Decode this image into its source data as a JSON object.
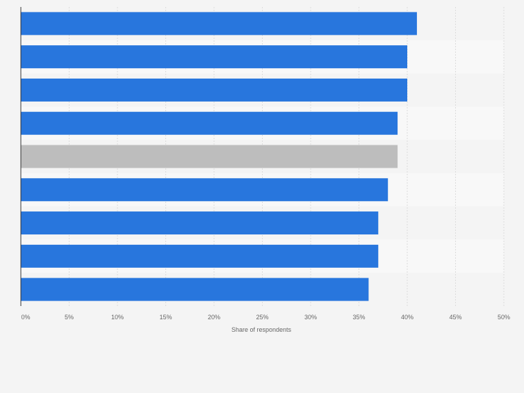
{
  "chart_data": {
    "type": "bar",
    "orientation": "horizontal",
    "categories": [
      "",
      "",
      "",
      "",
      "",
      "",
      "",
      "",
      ""
    ],
    "values": [
      41,
      40,
      40,
      39,
      39,
      38,
      37,
      37,
      36
    ],
    "highlight_index": 4,
    "xlabel": "Share of respondents",
    "ylabel": "",
    "xlim": [
      0,
      50
    ],
    "ticks": [
      0,
      5,
      10,
      15,
      20,
      25,
      30,
      35,
      40,
      45,
      50
    ],
    "tick_labels": [
      "0%",
      "5%",
      "10%",
      "15%",
      "20%",
      "25%",
      "30%",
      "35%",
      "40%",
      "45%",
      "50%"
    ],
    "grid": true,
    "legend": "none",
    "colors": {
      "bar": "#2876dd",
      "highlight": "#bdbdbd",
      "background": "#f4f4f4",
      "band": "#f8f8f8",
      "grid": "#dcdcdc",
      "axis": "#333333",
      "text": "#666666"
    }
  }
}
